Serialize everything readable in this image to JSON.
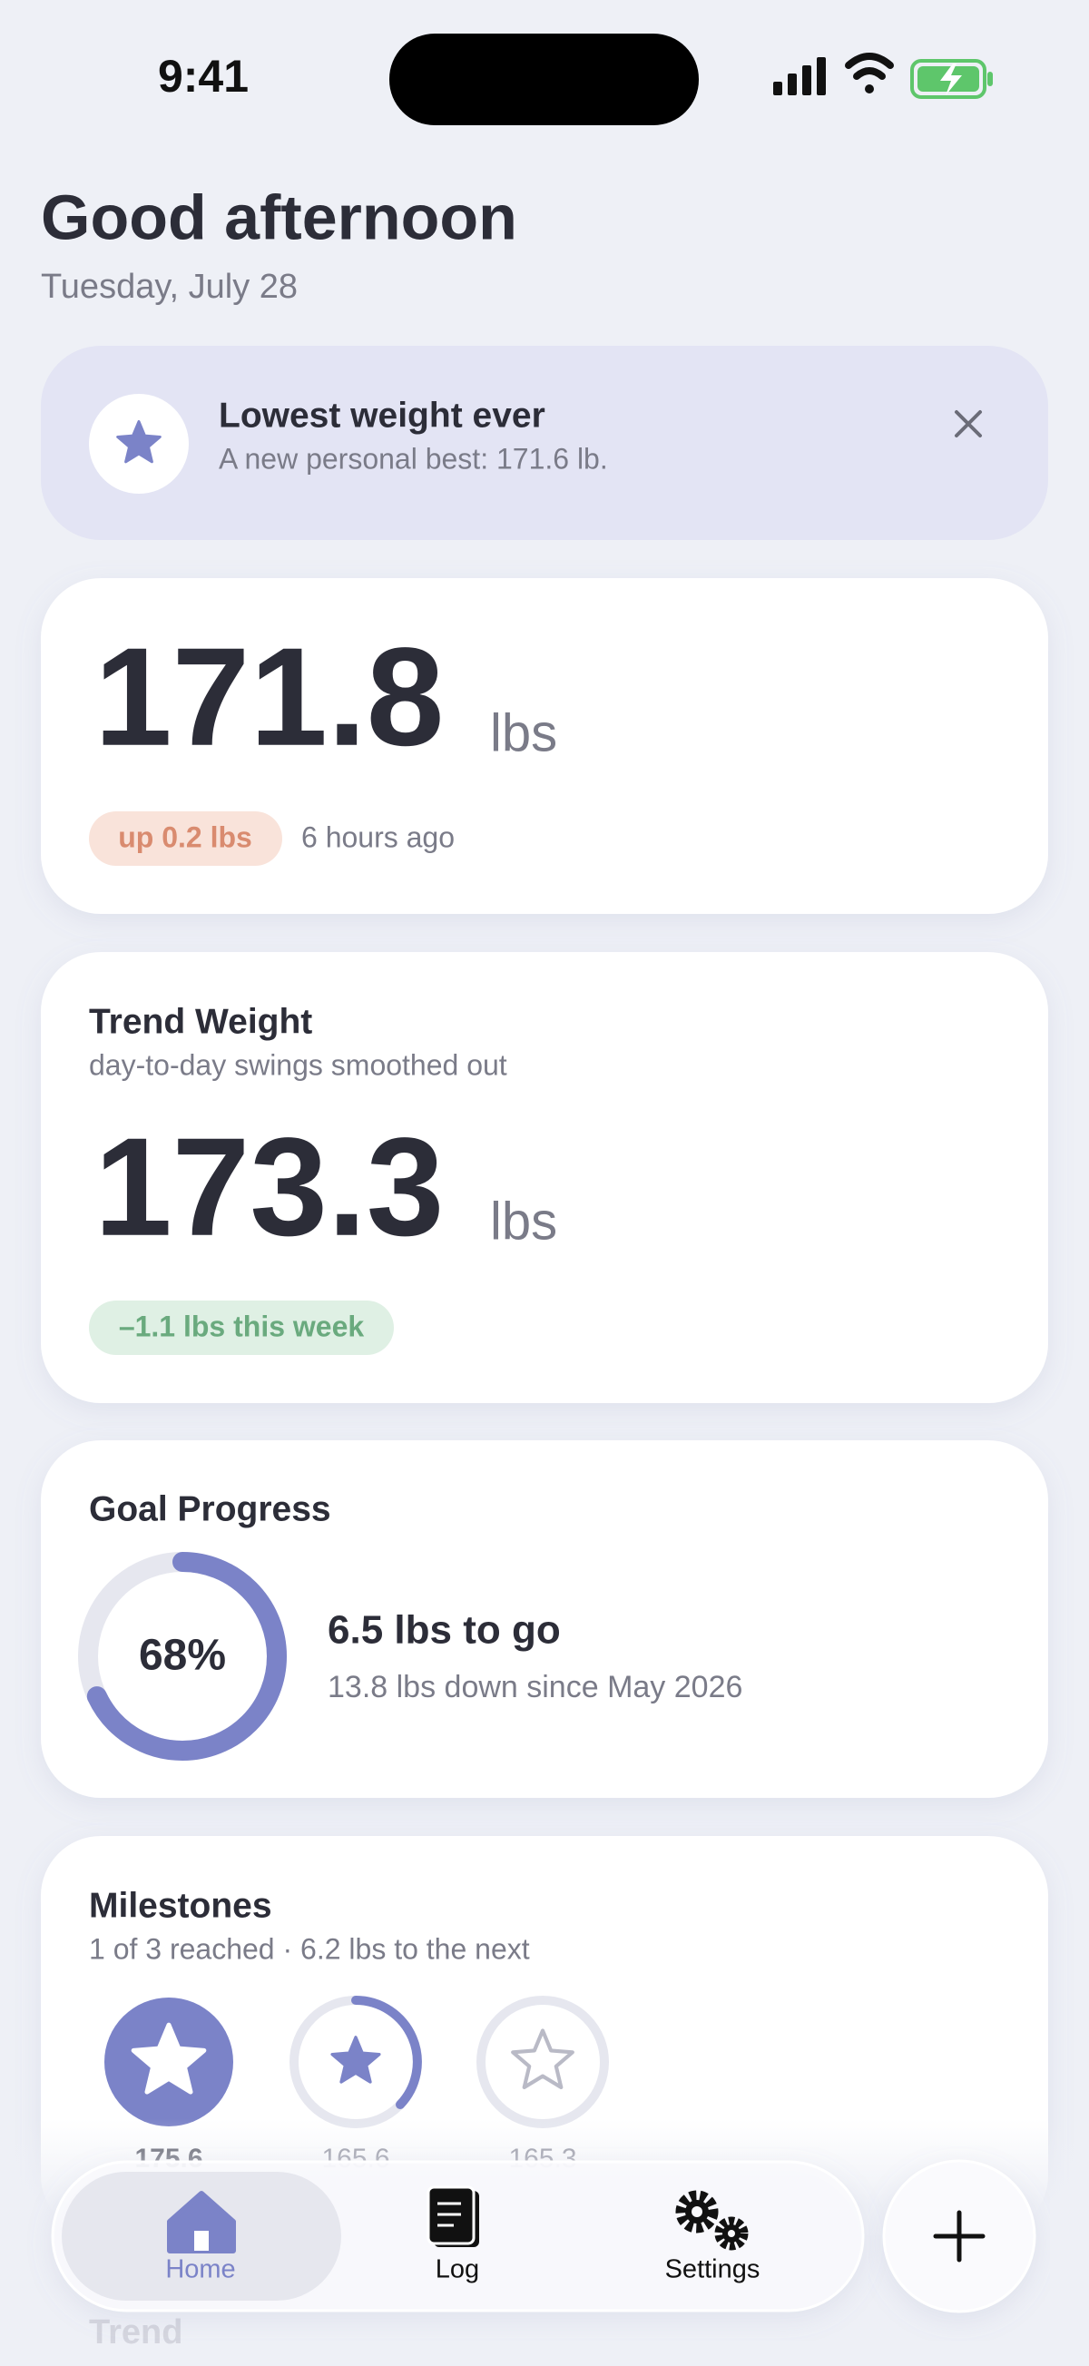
{
  "status_bar": {
    "time": "9:41"
  },
  "header": {
    "title": "Good afternoon",
    "date": "Tuesday, July 28"
  },
  "banner": {
    "title": "Lowest weight ever",
    "text": "A new personal best: 171.6 lb."
  },
  "current": {
    "weight": 171.8,
    "unit": "lbs",
    "change": "up 0.2 lbs",
    "time": "6 hours ago"
  },
  "trend": {
    "title": "Trend Weight",
    "subtitle": "day-to-day swings smoothed out",
    "weight": 173.3,
    "unit": "lbs",
    "change": "–1.1 lbs this week"
  },
  "goal": {
    "title": "Goal Progress",
    "percent": 68,
    "percent_label": "68%",
    "remaining": "6.5 lbs to go",
    "since": "13.8 lbs down since May 2026"
  },
  "milestones": {
    "title": "Milestones",
    "subtitle": "1 of 3 reached · 6.2 lbs to the next",
    "items": [
      175.6,
      165.6,
      165.3
    ]
  },
  "next_section": "Trend",
  "tabs": [
    "Home",
    "Log",
    "Settings"
  ]
}
